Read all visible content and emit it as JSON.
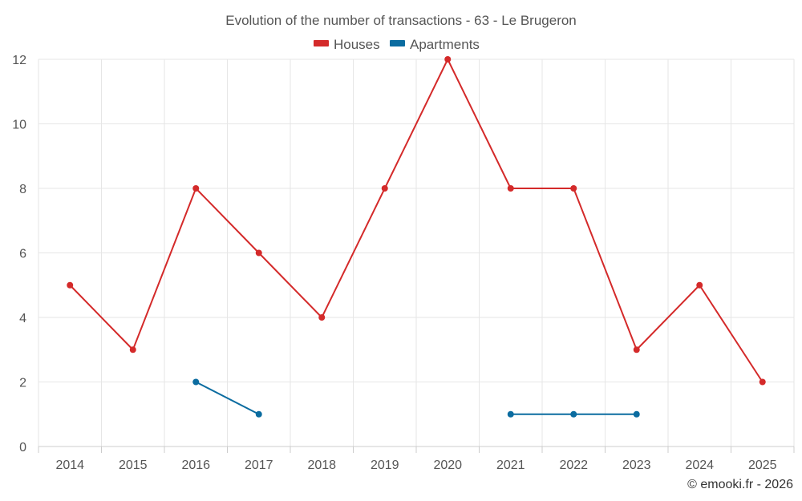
{
  "chart_data": {
    "type": "line",
    "title": "Evolution of the number of transactions - 63 - Le Brugeron",
    "categories": [
      "2014",
      "2015",
      "2016",
      "2017",
      "2018",
      "2019",
      "2020",
      "2021",
      "2022",
      "2023",
      "2024",
      "2025"
    ],
    "y_ticks": [
      0,
      2,
      4,
      6,
      8,
      10,
      12
    ],
    "ylim": [
      0,
      12
    ],
    "xlabel": "",
    "ylabel": "",
    "grid": true,
    "legend_position": "top-center",
    "series": [
      {
        "name": "Houses",
        "color": "#d42a2a",
        "values": [
          5,
          3,
          8,
          6,
          4,
          8,
          12,
          8,
          8,
          3,
          5,
          2
        ]
      },
      {
        "name": "Apartments",
        "color": "#0b6ca0",
        "values": [
          null,
          null,
          2,
          1,
          null,
          null,
          null,
          1,
          1,
          1,
          null,
          null
        ]
      }
    ],
    "credit": "© emooki.fr - 2026"
  }
}
